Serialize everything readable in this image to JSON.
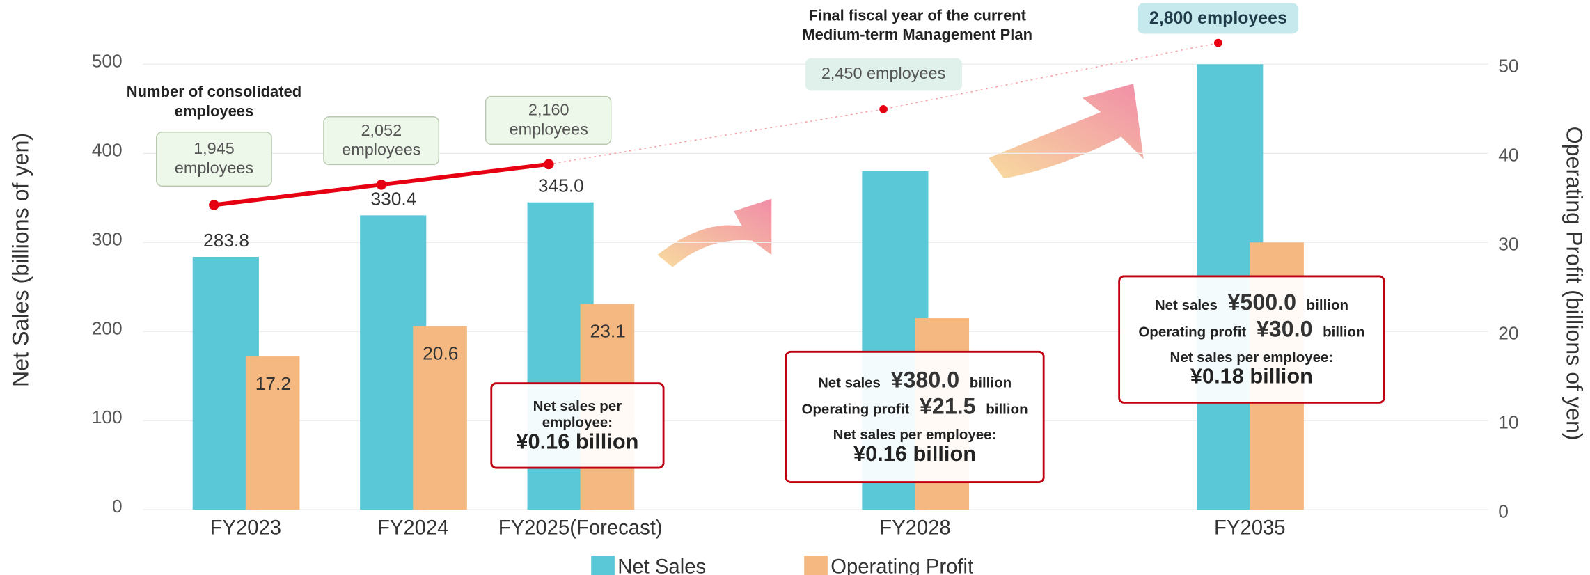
{
  "chart_data": {
    "type": "bar",
    "categories": [
      "FY2023",
      "FY2024",
      "FY2025(Forecast)",
      "FY2028",
      "FY2035"
    ],
    "series": [
      {
        "name": "Net Sales",
        "color": "#5bc8d8",
        "values": [
          283.8,
          330.4,
          345.0,
          380.0,
          500.0
        ],
        "value_labels": [
          "283.8",
          "330.4",
          "345.0",
          null,
          null
        ]
      },
      {
        "name": "Operating Profit",
        "color": "#f5b880",
        "axis": "y2",
        "values": [
          17.2,
          20.6,
          23.1,
          21.5,
          30.0
        ],
        "value_labels": [
          "17.2",
          "20.6",
          "23.1",
          null,
          null
        ]
      }
    ],
    "employees": {
      "color": "#e60012",
      "values": [
        1945,
        2052,
        2160,
        2450,
        2800
      ],
      "value_labels": [
        "1,945 employees",
        "2,052 employees",
        "2,160 employees",
        "2,450 employees",
        "2,800 employees"
      ]
    },
    "ylabel": "Net Sales (billions of yen)",
    "y2label": "Operating Profit (billions of yen)",
    "ylim": [
      0,
      500
    ],
    "yticks": [
      0,
      100,
      200,
      300,
      400,
      500
    ],
    "y2lim": [
      0,
      50
    ],
    "y2ticks": [
      0,
      10,
      20,
      30,
      40,
      50
    ],
    "grid": true,
    "legend": "bottom",
    "annotations": {
      "employees_title": "Number of consolidated employees",
      "plan_note": "Final fiscal year of the current Medium-term Management Plan",
      "fy2025_box": {
        "per_employee_label": "Net sales per employee:",
        "per_employee_value": "¥0.16 billion"
      },
      "fy2028_box": {
        "net_sales_label": "Net sales",
        "net_sales_value": "¥380.0",
        "net_sales_unit": "billion",
        "op_label": "Operating profit",
        "op_value": "¥21.5",
        "op_unit": "billion",
        "per_employee_label": "Net sales per employee:",
        "per_employee_value": "¥0.16 billion"
      },
      "fy2035_box": {
        "net_sales_label": "Net sales",
        "net_sales_value": "¥500.0",
        "net_sales_unit": "billion",
        "op_label": "Operating profit",
        "op_value": "¥30.0",
        "op_unit": "billion",
        "per_employee_label": "Net sales per employee:",
        "per_employee_value": "¥0.18 billion"
      }
    }
  }
}
